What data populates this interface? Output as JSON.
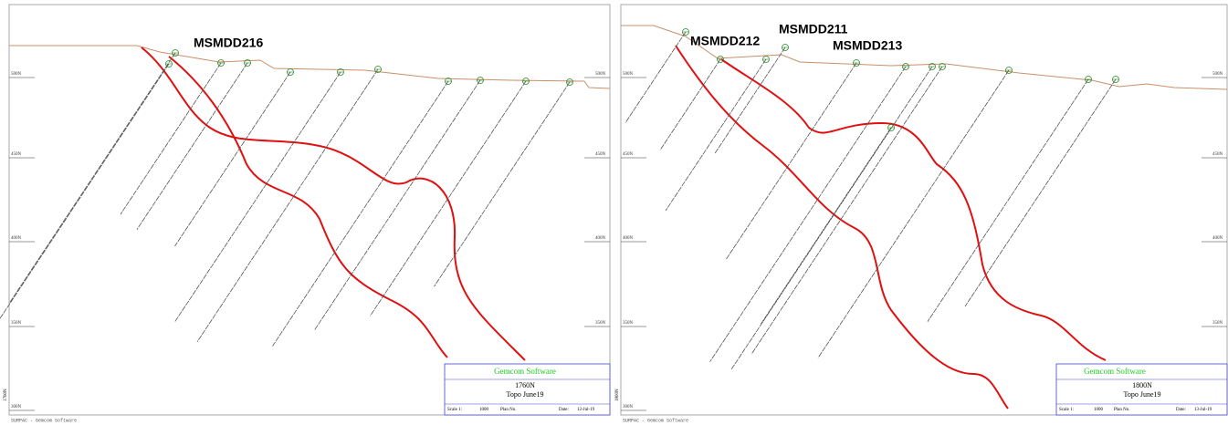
{
  "panels": [
    {
      "section": "1760N",
      "hole_labels": [
        "MSMDD216"
      ],
      "elevation_labels": [
        "500N",
        "450N",
        "400N",
        "350N",
        "300N"
      ],
      "title_block": {
        "company": "Gemcom Software",
        "section": "1760N",
        "topo": "Topo June19",
        "scale_label": "Scale 1:",
        "scale": "1000",
        "plan_label": "Plan No.",
        "date_label": "Date:",
        "date": "12-Jul-19"
      },
      "footer": "SURPAC - Gemcom Software"
    },
    {
      "section": "1800N",
      "hole_labels": [
        "MSMDD212",
        "MSMDD211",
        "MSMDD213"
      ],
      "elevation_labels": [
        "500N",
        "450N",
        "400N",
        "350N",
        "300N"
      ],
      "title_block": {
        "company": "Gemcom Software",
        "section": "1800N",
        "topo": "Topo June19",
        "scale_label": "Scale 1:",
        "scale": "1000",
        "plan_label": "Plan No.",
        "date_label": "Date:",
        "date": "13-Jul-19"
      },
      "footer": "SURPAC - Gemcom Software"
    }
  ]
}
